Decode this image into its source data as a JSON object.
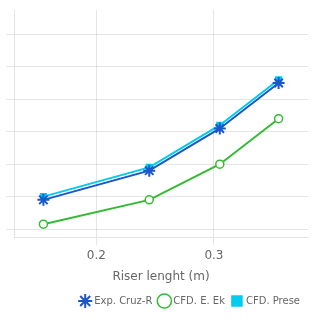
{
  "chart_data": {
    "type": "line",
    "xlabel": "Riser lenght (m)",
    "x": [
      0.155,
      0.245,
      0.305,
      0.355
    ],
    "series": [
      {
        "name": "Exp. Cruz-R",
        "color": "#1a56cc",
        "marker": "star",
        "values": [
          318,
          336,
          362,
          390
        ]
      },
      {
        "name": "CFD. E. Ek",
        "color": "#33bb33",
        "marker": "circle",
        "values": [
          303,
          318,
          340,
          368
        ]
      },
      {
        "name": "CFD. Prese",
        "color": "#00ccee",
        "marker": "square",
        "values": [
          320,
          338,
          364,
          392
        ]
      }
    ],
    "xlim": [
      0.13,
      0.38
    ],
    "xticks": [
      0.2,
      0.3
    ],
    "ylim": [
      295,
      435
    ],
    "yticks": [
      300,
      320,
      340,
      360,
      380,
      400,
      420
    ],
    "grid": true,
    "legend": "lower right",
    "tick_labels": "x"
  }
}
